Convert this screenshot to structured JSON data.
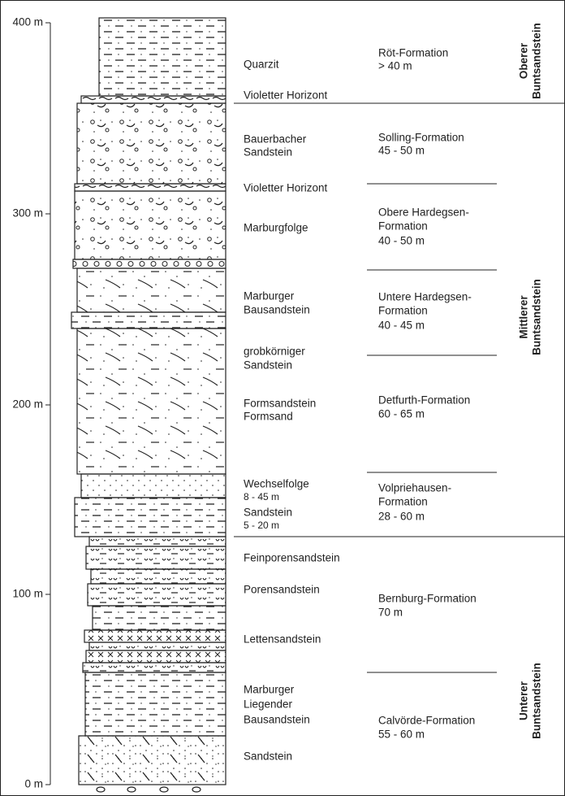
{
  "scale": [
    "400 m",
    "300 m",
    "200 m",
    "100 m",
    "0 m"
  ],
  "lithology": [
    [
      "Quarzit"
    ],
    [
      "Violetter Horizont"
    ],
    [
      "Bauerbacher",
      "Sandstein"
    ],
    [
      "Violetter Horizont"
    ],
    [
      "Marburgfolge"
    ],
    [
      "Marburger",
      "Bausandstein"
    ],
    [
      "grobkörniger",
      "Sandstein"
    ],
    [
      "Formsandstein",
      "Formsand"
    ],
    [
      "Wechselfolge",
      "8 - 45 m",
      "Sandstein",
      "5 - 20 m"
    ],
    [
      "Feinporensandstein"
    ],
    [
      "Porensandstein"
    ],
    [
      "Lettensandstein"
    ],
    [
      "Marburger",
      "Liegender",
      "Bausandstein"
    ],
    [
      "Sandstein"
    ]
  ],
  "formations": [
    [
      "Röt-Formation",
      "> 40 m"
    ],
    [
      "Solling-Formation",
      "45 - 50 m"
    ],
    [
      "Obere Hardegsen-",
      "Formation",
      "40 - 50 m"
    ],
    [
      "Untere Hardegsen-",
      "Formation",
      "40 - 45 m"
    ],
    [
      "Detfurth-Formation",
      "60 - 65 m"
    ],
    [
      "Volpriehausen-",
      "Formation",
      "28 - 60 m"
    ],
    [
      "Bernburg-Formation",
      "70 m"
    ],
    [
      "Calvörde-Formation",
      "55 - 60 m"
    ]
  ],
  "groups": [
    [
      "Oberer",
      "Buntsandstein"
    ],
    [
      "Mittlerer",
      "Buntsandstein"
    ],
    [
      "Unterer",
      "Buntsandstein"
    ]
  ]
}
